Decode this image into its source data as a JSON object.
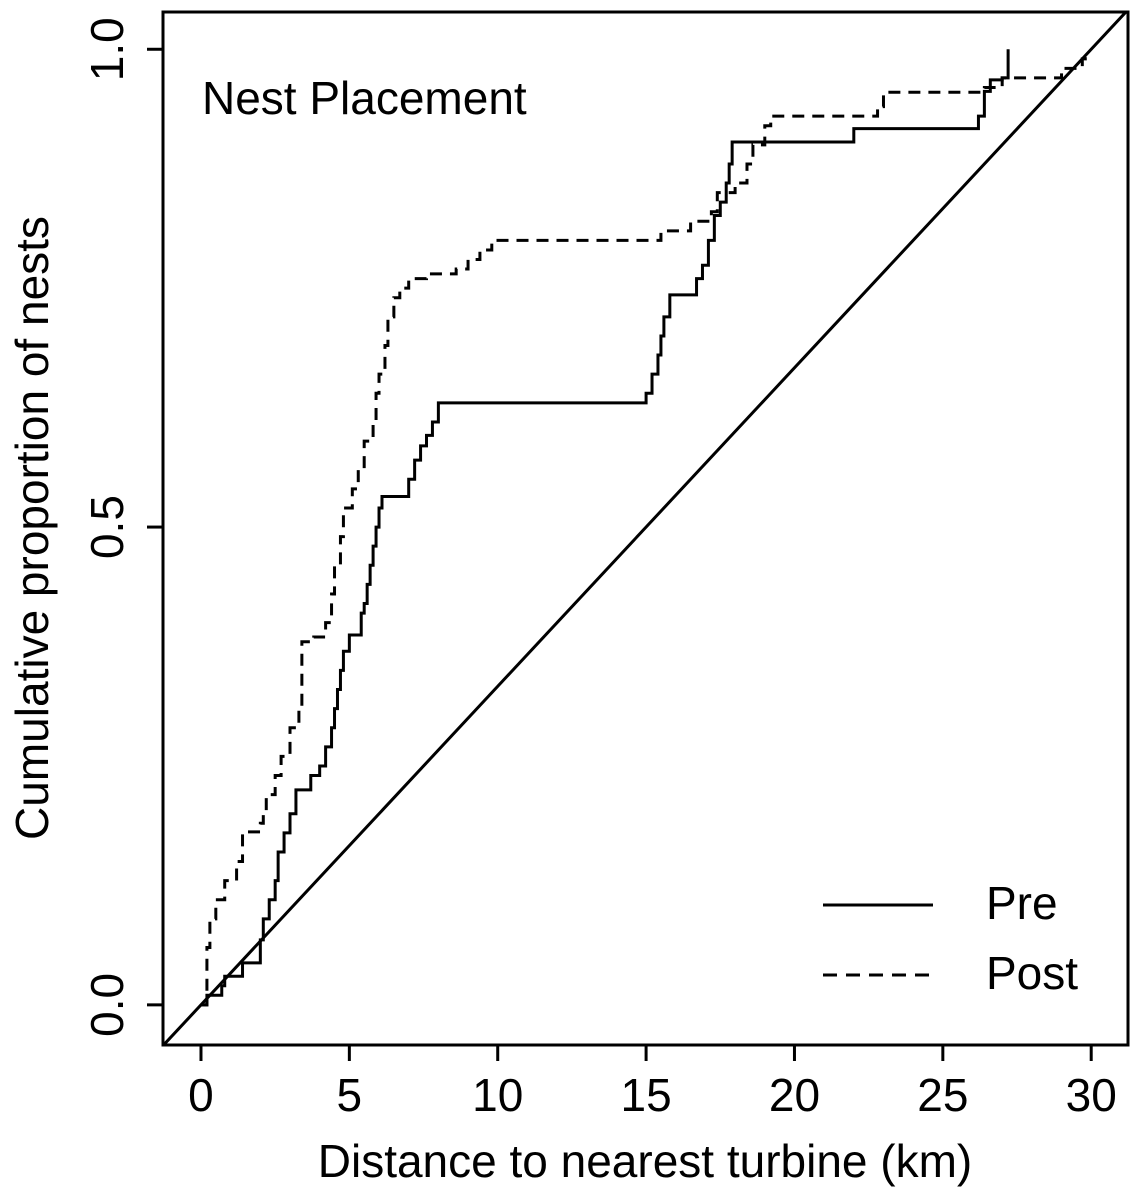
{
  "chart_data": {
    "type": "step",
    "title": "Nest Placement",
    "x_label": "Distance to nearest turbine (km)",
    "y_label": "Cumulative proportion of nests",
    "xlim": [
      -1.28,
      31.24
    ],
    "ylim": [
      -0.042,
      1.039
    ],
    "xticks": [
      0,
      5,
      10,
      15,
      20,
      25,
      30
    ],
    "yticks": [
      {
        "value": 0,
        "label": "0.0"
      },
      0.5,
      {
        "value": 1,
        "label": "1.0"
      }
    ],
    "legend": "bottom-right",
    "reference_line": {
      "x": [
        0,
        30
      ],
      "values": [
        0,
        1
      ],
      "color": "#000000"
    },
    "series": [
      {
        "name": "Pre",
        "color": "#000000",
        "dash": false,
        "x": [
          0,
          0.2,
          0.7,
          0.8,
          1.4,
          2.0,
          2.1,
          2.3,
          2.5,
          2.6,
          2.8,
          3.0,
          3.2,
          3.7,
          4.0,
          4.2,
          4.4,
          4.5,
          4.6,
          4.7,
          4.8,
          5.0,
          5.4,
          5.5,
          5.6,
          5.7,
          5.8,
          5.9,
          6.0,
          6.1,
          7.0,
          7.2,
          7.4,
          7.6,
          7.8,
          8.0,
          15.0,
          15.2,
          15.4,
          15.5,
          15.6,
          15.8,
          16.7,
          16.9,
          17.1,
          17.3,
          17.5,
          17.7,
          17.8,
          17.9,
          18.1,
          22.0,
          26.2,
          26.4,
          26.6,
          27.0,
          27.2
        ],
        "values": [
          0,
          0.01,
          0.02,
          0.03,
          0.044,
          0.068,
          0.09,
          0.11,
          0.13,
          0.16,
          0.18,
          0.2,
          0.225,
          0.24,
          0.25,
          0.27,
          0.29,
          0.31,
          0.33,
          0.35,
          0.37,
          0.387,
          0.41,
          0.42,
          0.44,
          0.46,
          0.48,
          0.5,
          0.52,
          0.532,
          0.55,
          0.57,
          0.585,
          0.596,
          0.61,
          0.63,
          0.64,
          0.66,
          0.68,
          0.7,
          0.72,
          0.743,
          0.76,
          0.774,
          0.8,
          0.826,
          0.84,
          0.86,
          0.88,
          0.903,
          0.903,
          0.917,
          0.93,
          0.956,
          0.968,
          0.97,
          1.0
        ]
      },
      {
        "name": "Post",
        "color": "#000000",
        "dash": true,
        "x": [
          0,
          0.2,
          0.3,
          0.5,
          0.8,
          1.2,
          1.4,
          2.0,
          2.1,
          2.2,
          2.5,
          2.7,
          3.0,
          3.3,
          3.4,
          3.8,
          4.2,
          4.4,
          4.5,
          4.7,
          4.8,
          5.1,
          5.3,
          5.5,
          5.8,
          5.9,
          6.0,
          6.2,
          6.3,
          6.5,
          6.7,
          7.0,
          7.6,
          8.6,
          9.0,
          9.4,
          9.8,
          15.5,
          16.5,
          17.2,
          17.4,
          18.0,
          18.4,
          18.6,
          19.0,
          19.2,
          22.8,
          23.0,
          26.4,
          27.0,
          29.0,
          29.7,
          29.8
        ],
        "values": [
          0,
          0.06,
          0.09,
          0.11,
          0.13,
          0.15,
          0.181,
          0.19,
          0.2,
          0.22,
          0.24,
          0.26,
          0.29,
          0.31,
          0.38,
          0.385,
          0.4,
          0.43,
          0.46,
          0.49,
          0.52,
          0.54,
          0.56,
          0.59,
          0.61,
          0.64,
          0.66,
          0.69,
          0.72,
          0.74,
          0.75,
          0.76,
          0.765,
          0.77,
          0.78,
          0.79,
          0.8,
          0.81,
          0.82,
          0.83,
          0.85,
          0.86,
          0.88,
          0.9,
          0.92,
          0.93,
          0.94,
          0.955,
          0.96,
          0.97,
          0.98,
          0.99,
          1.0
        ]
      }
    ]
  }
}
